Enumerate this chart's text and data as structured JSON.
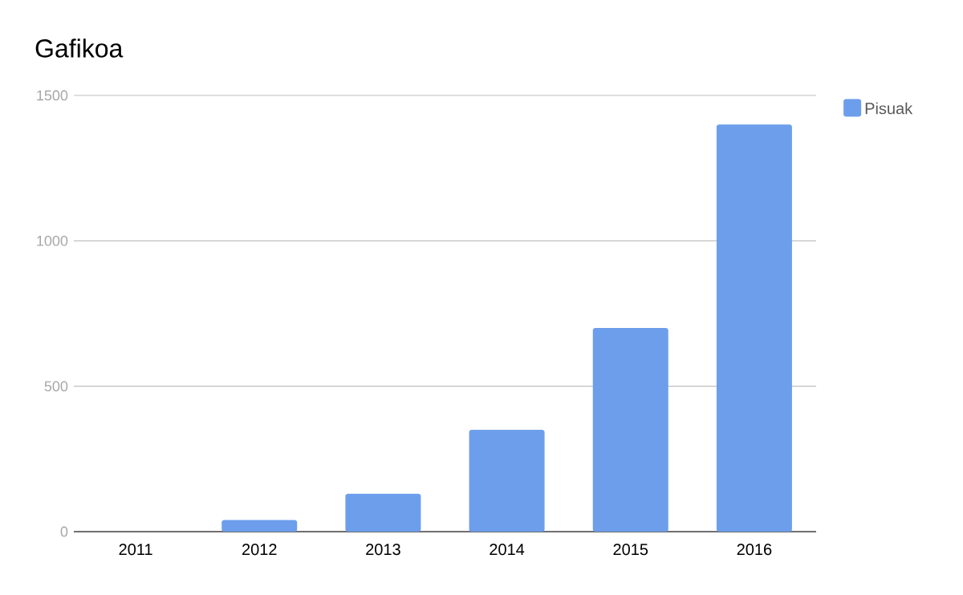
{
  "chart_data": {
    "type": "bar",
    "title": "Gafikoa",
    "categories": [
      "2011",
      "2012",
      "2013",
      "2014",
      "2015",
      "2016"
    ],
    "series": [
      {
        "name": "Pisuak",
        "color": "#6d9eeb",
        "values": [
          0,
          40,
          130,
          350,
          700,
          1400
        ]
      }
    ],
    "ylim": [
      0,
      1500
    ],
    "yticks": [
      0,
      500,
      1000,
      1500
    ],
    "grid": "y",
    "legend": "top right"
  }
}
